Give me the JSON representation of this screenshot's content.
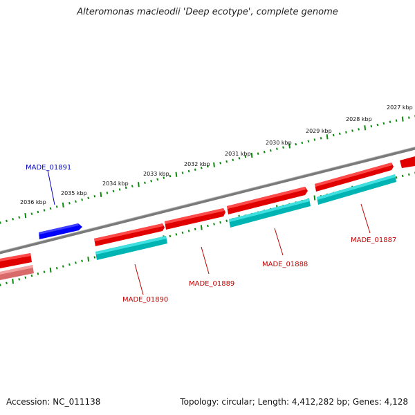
{
  "title": "Alteromonas macleodii 'Deep ecotype', complete genome",
  "accession": "Accession: NC_011138",
  "summary": "Topology: circular; Length: 4,412,282 bp; Genes: 4,128",
  "colors": {
    "backbone": "#808080",
    "ticks": "#0a8a0a",
    "forward_gene": "#ff0000",
    "reverse_gene": "#0000ff",
    "cds_track": "#00c8c8",
    "faded_gene": "#f08080",
    "label_forward": "#c00000",
    "label_reverse": "#0000c0"
  },
  "kbp_ticks": [
    "2027 kbp",
    "2028 kbp",
    "2029 kbp",
    "2030 kbp",
    "2031 kbp",
    "2032 kbp",
    "2033 kbp",
    "2034 kbp",
    "2035 kbp",
    "2036 kbp"
  ],
  "gene_labels": [
    {
      "id": "MADE_01891",
      "strand": "reverse"
    },
    {
      "id": "MADE_01890",
      "strand": "forward"
    },
    {
      "id": "MADE_01889",
      "strand": "forward"
    },
    {
      "id": "MADE_01888",
      "strand": "forward"
    },
    {
      "id": "MADE_01887",
      "strand": "forward"
    }
  ]
}
